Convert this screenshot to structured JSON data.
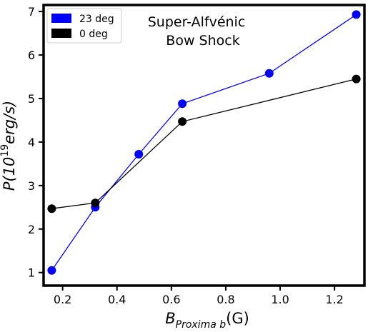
{
  "chart_data": {
    "type": "line",
    "title_lines": [
      "Super-Alfvénic",
      "Bow Shock"
    ],
    "xlabel": {
      "main": "B",
      "sub": "Proxima b",
      "unit": "(G)"
    },
    "ylabel": {
      "main": "P(10",
      "exp": "19",
      "unit": "erg/s)"
    },
    "xlim": [
      0.13,
      1.31
    ],
    "ylim": [
      0.7,
      7.15
    ],
    "xticks": [
      0.2,
      0.4,
      0.6,
      0.8,
      1.0,
      1.2
    ],
    "xtick_labels": [
      "0.2",
      "0.4",
      "0.6",
      "0.8",
      "1.0",
      "1.2"
    ],
    "yticks": [
      1,
      2,
      3,
      4,
      5,
      6,
      7
    ],
    "ytick_labels": [
      "1",
      "2",
      "3",
      "4",
      "5",
      "6",
      "7"
    ],
    "grid": false,
    "legend_position": "top-left",
    "series": [
      {
        "name": "23 deg",
        "color": "#0000ff",
        "x": [
          0.16,
          0.32,
          0.48,
          0.64,
          0.96,
          1.28
        ],
        "y": [
          1.05,
          2.5,
          3.72,
          4.88,
          5.58,
          6.93
        ]
      },
      {
        "name": "0 deg",
        "color": "#000000",
        "x": [
          0.16,
          0.32,
          0.64,
          1.28
        ],
        "y": [
          2.47,
          2.6,
          4.47,
          5.45
        ]
      }
    ]
  }
}
